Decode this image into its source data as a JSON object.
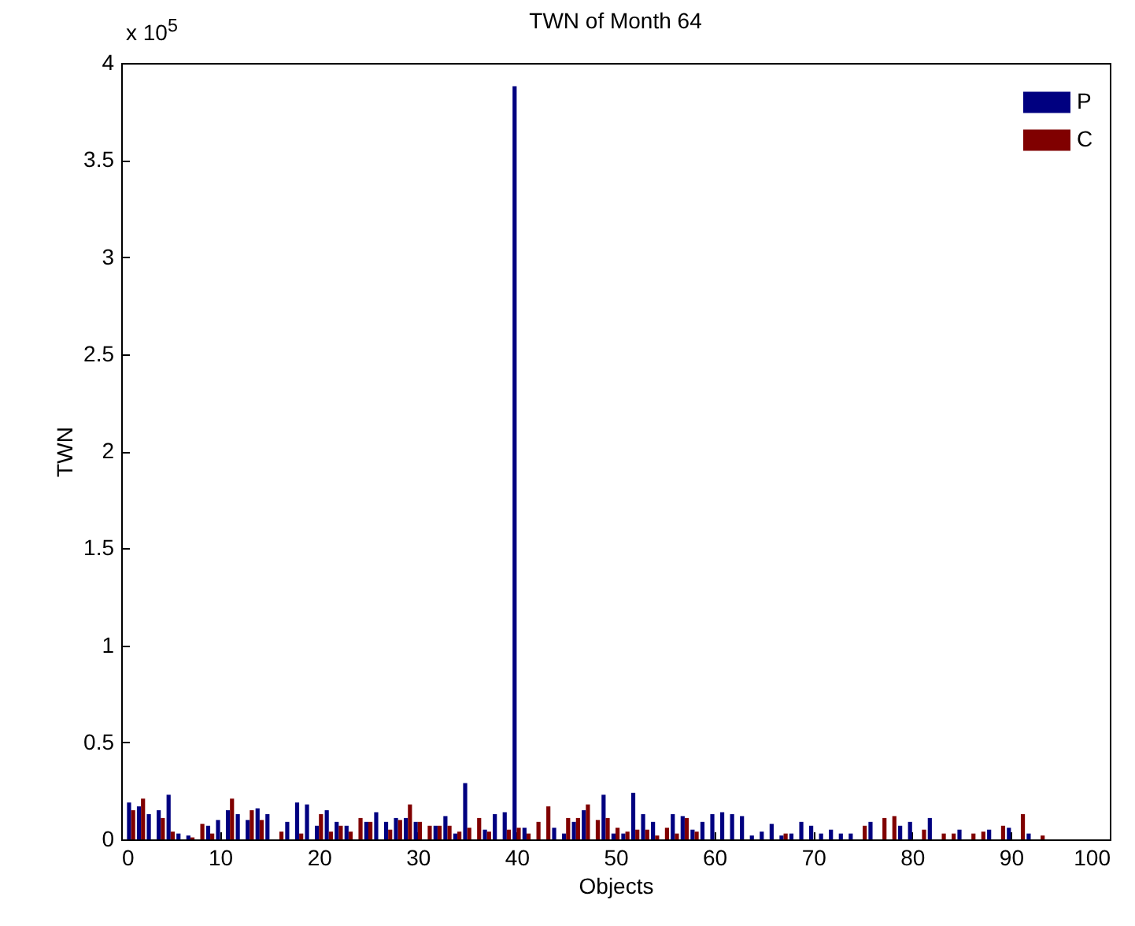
{
  "chart_data": {
    "type": "bar",
    "title": "TWN of Month 64",
    "xlabel": "Objects",
    "ylabel": "TWN",
    "annotations": [
      "x 10$^{5}$"
    ],
    "x": [
      1,
      2,
      3,
      4,
      5,
      6,
      7,
      8,
      9,
      10,
      11,
      12,
      13,
      14,
      15,
      16,
      17,
      18,
      19,
      20,
      21,
      22,
      23,
      24,
      25,
      26,
      27,
      28,
      29,
      30,
      31,
      32,
      33,
      34,
      35,
      36,
      37,
      38,
      39,
      40,
      41,
      42,
      43,
      44,
      45,
      46,
      47,
      48,
      49,
      50,
      51,
      52,
      53,
      54,
      55,
      56,
      57,
      58,
      59,
      60,
      61,
      62,
      63,
      64,
      65,
      66,
      67,
      68,
      69,
      70,
      71,
      72,
      73,
      74,
      75,
      76,
      77,
      78,
      79,
      80,
      81,
      82,
      83,
      84,
      85,
      86,
      87,
      88,
      89,
      90,
      91,
      92,
      93
    ],
    "series": [
      {
        "name": "P",
        "color": "#000080",
        "values": [
          0.19,
          0.17,
          0.13,
          0.15,
          0.23,
          0.03,
          0.02,
          null,
          0.07,
          0.1,
          0.15,
          0.13,
          0.1,
          0.16,
          0.13,
          null,
          0.09,
          0.19,
          0.18,
          0.07,
          0.15,
          0.09,
          0.07,
          null,
          0.09,
          0.14,
          0.09,
          0.11,
          0.11,
          0.09,
          null,
          0.07,
          0.12,
          0.03,
          0.29,
          null,
          0.05,
          0.13,
          0.14,
          3.88,
          0.06,
          null,
          null,
          0.06,
          0.03,
          0.09,
          0.15,
          null,
          0.23,
          0.03,
          0.03,
          0.24,
          0.13,
          0.09,
          null,
          0.13,
          0.12,
          0.05,
          0.09,
          0.13,
          0.14,
          0.13,
          0.12,
          0.02,
          0.04,
          0.08,
          0.02,
          0.03,
          0.09,
          0.07,
          0.03,
          0.05,
          0.03,
          0.03,
          null,
          0.09,
          null,
          null,
          0.07,
          0.09,
          null,
          0.11,
          null,
          null,
          0.05,
          null,
          null,
          0.05,
          null,
          0.06,
          null,
          0.03,
          null
        ]
      },
      {
        "name": "C",
        "color": "#800000",
        "values": [
          0.15,
          0.21,
          null,
          0.11,
          0.04,
          null,
          0.01,
          0.08,
          0.03,
          null,
          0.21,
          null,
          0.15,
          0.1,
          null,
          0.04,
          null,
          0.03,
          null,
          0.13,
          0.04,
          0.07,
          0.04,
          0.11,
          0.09,
          null,
          0.05,
          0.1,
          0.18,
          0.09,
          0.07,
          0.07,
          0.07,
          0.04,
          0.06,
          0.11,
          0.04,
          null,
          0.05,
          0.06,
          0.03,
          0.09,
          0.17,
          null,
          0.11,
          0.11,
          0.18,
          0.1,
          0.11,
          0.06,
          0.04,
          0.05,
          0.05,
          0.02,
          0.06,
          0.03,
          0.11,
          0.04,
          null,
          null,
          null,
          null,
          null,
          null,
          null,
          null,
          0.03,
          null,
          null,
          null,
          null,
          null,
          null,
          null,
          0.07,
          null,
          0.11,
          0.12,
          null,
          null,
          0.05,
          null,
          0.03,
          0.03,
          null,
          0.03,
          0.04,
          null,
          0.07,
          null,
          0.13,
          null,
          0.02
        ]
      }
    ],
    "xlim": [
      0,
      100
    ],
    "xticks": [
      0,
      10,
      20,
      30,
      40,
      50,
      60,
      70,
      80,
      90,
      100
    ],
    "ylim": [
      0,
      4
    ],
    "yticks": [
      0,
      0.5,
      1,
      1.5,
      2,
      2.5,
      3,
      3.5,
      4
    ],
    "legend": "top right"
  }
}
